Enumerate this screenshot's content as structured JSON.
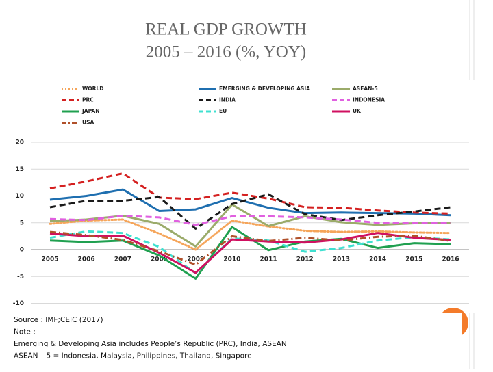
{
  "chart_data": {
    "type": "line",
    "title": "REAL GDP GROWTH",
    "subtitle": "2005 – 2016 (%, YOY)",
    "categories": [
      "2005",
      "2006",
      "2007",
      "2008",
      "2009",
      "2010",
      "2011",
      "2012",
      "2013",
      "2014",
      "2015",
      "2016"
    ],
    "ylim": [
      -10,
      20
    ],
    "yticks": [
      -10,
      -5,
      0,
      5,
      10,
      15,
      20
    ],
    "grid": true,
    "series": [
      {
        "name": "WORLD",
        "color": "#f5a55a",
        "dash": "dot",
        "values": [
          4.8,
          5.4,
          5.6,
          3.0,
          0.0,
          5.4,
          4.3,
          3.5,
          3.3,
          3.4,
          3.2,
          3.1
        ]
      },
      {
        "name": "EMERGING & DEVELOPING ASIA",
        "color": "#1f6fb0",
        "dash": "solid",
        "values": [
          9.3,
          10.0,
          11.2,
          7.2,
          7.5,
          9.6,
          7.8,
          6.8,
          6.9,
          6.8,
          6.7,
          6.4
        ]
      },
      {
        "name": "ASEAN-5",
        "color": "#9bab6a",
        "dash": "solid",
        "values": [
          5.3,
          5.6,
          6.3,
          4.8,
          0.6,
          8.4,
          4.4,
          6.2,
          5.1,
          4.6,
          4.9,
          4.9
        ]
      },
      {
        "name": "PRC",
        "color": "#d42020",
        "dash": "dash",
        "values": [
          11.4,
          12.7,
          14.2,
          9.7,
          9.4,
          10.6,
          9.5,
          7.9,
          7.8,
          7.3,
          6.9,
          6.7
        ]
      },
      {
        "name": "INDIA",
        "color": "#1a1a1a",
        "dash": "dash",
        "values": [
          7.9,
          9.1,
          9.1,
          9.8,
          3.9,
          8.5,
          10.3,
          6.6,
          5.5,
          6.4,
          7.1,
          7.9
        ]
      },
      {
        "name": "INDONESIA",
        "color": "#e060e0",
        "dash": "dash",
        "values": [
          5.7,
          5.5,
          6.3,
          6.0,
          4.6,
          6.2,
          6.2,
          6.0,
          5.6,
          5.0,
          4.9,
          5.0
        ]
      },
      {
        "name": "JAPAN",
        "color": "#20a050",
        "dash": "solid",
        "values": [
          1.7,
          1.4,
          1.7,
          -1.1,
          -5.4,
          4.2,
          -0.1,
          1.5,
          2.0,
          0.3,
          1.2,
          1.0
        ]
      },
      {
        "name": "EU",
        "color": "#40e0d0",
        "dash": "dash",
        "values": [
          2.2,
          3.4,
          3.1,
          0.5,
          -4.4,
          2.1,
          1.7,
          -0.4,
          0.3,
          1.7,
          2.3,
          1.9
        ]
      },
      {
        "name": "UK",
        "color": "#d01060",
        "dash": "solid",
        "values": [
          3.0,
          2.5,
          2.6,
          -0.6,
          -4.3,
          1.9,
          1.5,
          1.3,
          1.9,
          3.1,
          2.2,
          1.8
        ]
      },
      {
        "name": "USA",
        "color": "#b0502a",
        "dash": "dashdot",
        "values": [
          3.3,
          2.7,
          1.8,
          -0.3,
          -2.8,
          2.5,
          1.6,
          2.2,
          1.7,
          2.4,
          2.6,
          1.6
        ]
      }
    ],
    "notes": [
      "Source : IMF;CEIC (2017)",
      "Note :",
      "Emerging & Developing Asia includes People’s Republic (PRC), India, ASEAN",
      "ASEAN – 5 = Indonesia, Malaysia, Philippines, Thailand, Singapore"
    ]
  }
}
